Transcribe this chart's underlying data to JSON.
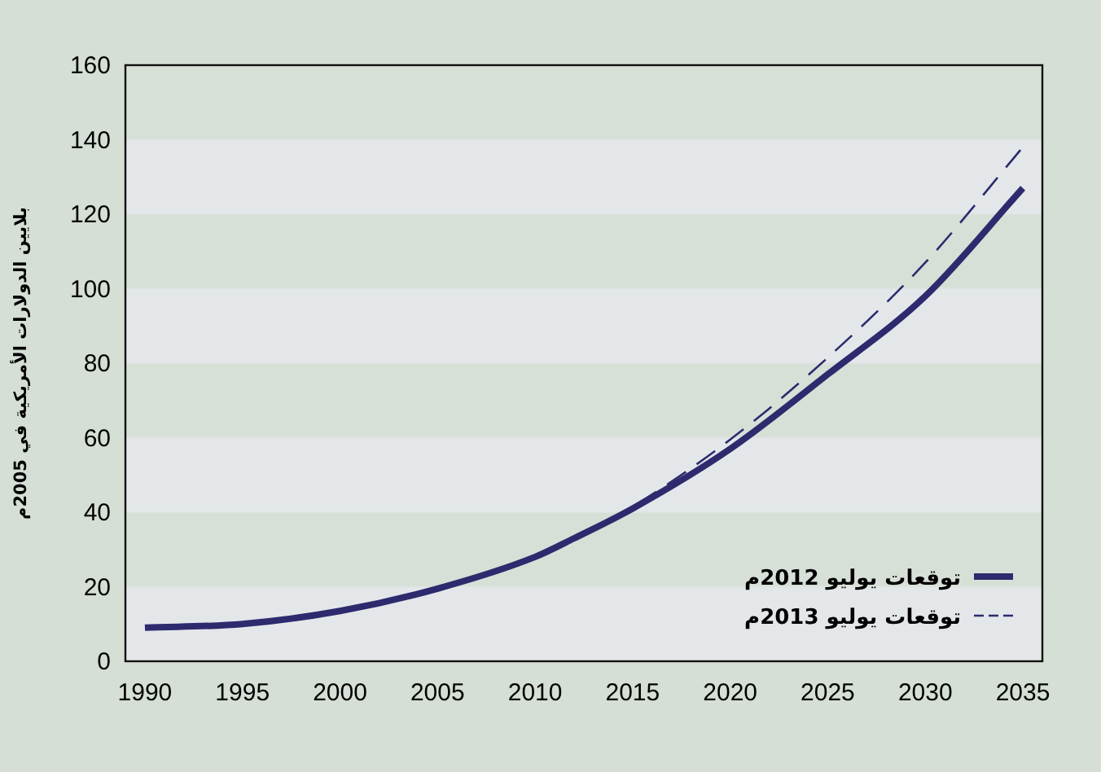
{
  "chart_data": {
    "type": "line",
    "ylabel": "بلايين الدولارات الأمريكية في 2005م",
    "x": [
      1990,
      1995,
      2000,
      2005,
      2010,
      2012,
      2015,
      2020,
      2025,
      2030,
      2035
    ],
    "series": [
      {
        "name": "توقعات يوليو 2012م",
        "color": "#2e2a6e",
        "line_style": "solid",
        "values": [
          9,
          10,
          13.5,
          19.5,
          28,
          33,
          41,
          57,
          77,
          98,
          127
        ]
      },
      {
        "name": "توقعات يوليو 2013م",
        "color": "#2e2a6e",
        "line_style": "dashed",
        "x": [
          2012,
          2015,
          2020,
          2025,
          2030,
          2035
        ],
        "values": [
          33,
          41.5,
          59.5,
          81.5,
          107,
          138
        ]
      }
    ],
    "xlim": [
      1989,
      2036
    ],
    "ylim": [
      0,
      160
    ],
    "xticks": [
      1990,
      1995,
      2000,
      2005,
      2010,
      2015,
      2020,
      2025,
      2030,
      2035
    ],
    "yticks": [
      0,
      20,
      40,
      60,
      80,
      100,
      120,
      140,
      160
    ],
    "grid": "y",
    "legend": "bottom right",
    "marker": "none"
  }
}
